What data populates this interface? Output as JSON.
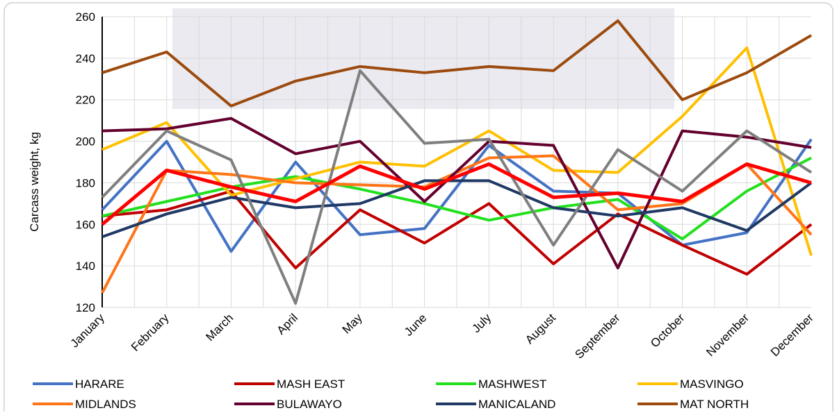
{
  "chart_data": {
    "type": "line",
    "y_label": "Carcass weight, kg",
    "categories": [
      "January",
      "February",
      "March",
      "April",
      "May",
      "June",
      "July",
      "August",
      "September",
      "October",
      "November",
      "December"
    ],
    "ylim": [
      120,
      260
    ],
    "yticks": [
      120,
      140,
      160,
      180,
      200,
      220,
      240,
      260
    ],
    "grid": true,
    "series": [
      {
        "name": "HARARE",
        "color": "#4472c4",
        "values": [
          167,
          200,
          147,
          190,
          155,
          158,
          198,
          176,
          175,
          150,
          156,
          201
        ]
      },
      {
        "name": "MASH EAST",
        "color": "#c00000",
        "values": [
          164,
          167,
          176,
          139,
          167,
          151,
          170,
          141,
          165,
          150,
          136,
          160
        ]
      },
      {
        "name": "MASHWEST",
        "color": "#22e01e",
        "values": [
          164,
          171,
          178,
          183,
          177,
          170,
          162,
          168,
          172,
          153,
          176,
          192
        ]
      },
      {
        "name": "MASVINGO",
        "color": "#ffc000",
        "values": [
          196,
          209,
          174,
          182,
          190,
          188,
          205,
          186,
          185,
          212,
          245,
          145
        ]
      },
      {
        "name": "MIDLANDS",
        "color": "#ff7518",
        "values": [
          127,
          186,
          184,
          180,
          179,
          178,
          192,
          193,
          167,
          170,
          189,
          155
        ]
      },
      {
        "name": "BULAWAYO",
        "color": "#64002e",
        "values": [
          205,
          206,
          211,
          194,
          200,
          171,
          200,
          198,
          139,
          205,
          202,
          197
        ]
      },
      {
        "name": "MANICALAND",
        "color": "#1f3864",
        "values": [
          154,
          165,
          173,
          168,
          170,
          181,
          181,
          168,
          164,
          168,
          157,
          180
        ]
      },
      {
        "name": "MAT NORTH",
        "color": "#9c4a0e",
        "values": [
          233,
          243,
          217,
          229,
          236,
          233,
          236,
          234,
          258,
          220,
          233,
          251
        ]
      },
      {
        "color": "#7f7f7f",
        "values": [
          173,
          205,
          191,
          122,
          234,
          199,
          201,
          150,
          196,
          176,
          205,
          185
        ]
      },
      {
        "color": "#ff0000",
        "width": 5,
        "values": [
          160,
          186,
          178,
          171,
          188,
          177,
          189,
          173,
          175,
          171,
          189,
          180
        ]
      }
    ]
  }
}
